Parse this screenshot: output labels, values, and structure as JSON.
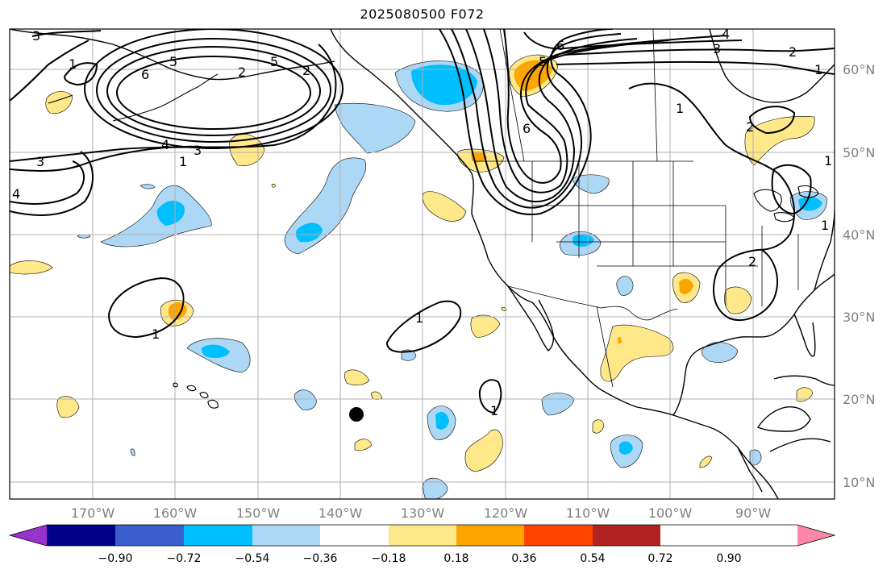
{
  "title": "2025080500 F072",
  "lat_labels": [
    "60°N",
    "50°N",
    "40°N",
    "30°N",
    "20°N",
    "10°N"
  ],
  "lon_labels": [
    "170°W",
    "160°W",
    "150°W",
    "140°W",
    "130°W",
    "120°W",
    "110°W",
    "100°W",
    "90°W"
  ],
  "colorbar": {
    "ticks": [
      "−0.90",
      "−0.72",
      "−0.54",
      "−0.36",
      "−0.18",
      "0.18",
      "0.36",
      "0.54",
      "0.72",
      "0.90"
    ],
    "colors": [
      "#9932cc",
      "#00008b",
      "#3a5fcd",
      "#00bfff",
      "#add8f5",
      "#ffffff",
      "#ffe88a",
      "#ffa500",
      "#ff4500",
      "#b22222",
      "#ff88aa"
    ]
  },
  "contour_labels": {
    "a1": "3",
    "a2": "1",
    "a3": "6",
    "a4": "5",
    "a5": "5",
    "a6": "2",
    "a7": "2",
    "a8": "4",
    "a9": "3",
    "a10": "1",
    "a11": "3",
    "a12": "4",
    "b1": "6",
    "b2": "5",
    "b3": "6",
    "b4": "4",
    "b5": "3",
    "b6": "2",
    "b7": "1",
    "b8": "1",
    "b9": "2",
    "c1": "1",
    "c2": "1",
    "c3": "1",
    "c4": "1",
    "c5": "1",
    "c6": "2"
  }
}
